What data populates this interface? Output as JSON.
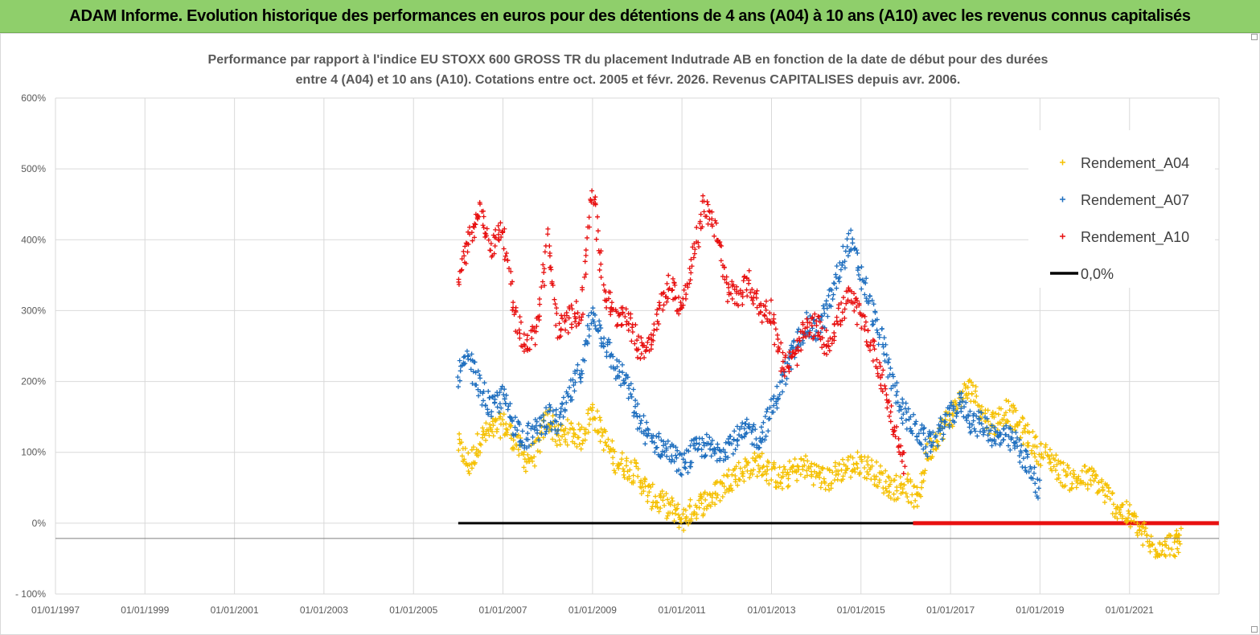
{
  "banner": {
    "title": "ADAM Informe. Evolution historique des performances en euros pour des détentions de 4 ans (A04) à 10 ans (A10) avec les revenus connus capitalisés"
  },
  "chart_data": {
    "type": "scatter",
    "title_line1": "Performance par rapport à l'indice EU STOXX 600 GROSS TR  du placement Indutrade AB en fonction de la date de début pour des durées",
    "title_line2": "entre 4 (A04) et 10 ans (A10).  Cotations entre oct. 2005 et févr. 2026. Revenus CAPITALISES depuis avr. 2006.",
    "xlabel": "",
    "ylabel": "",
    "x_tick_labels": [
      "01/01/1997",
      "01/01/1999",
      "01/01/2001",
      "01/01/2003",
      "01/01/2005",
      "01/01/2007",
      "01/01/2009",
      "01/01/2011",
      "01/01/2013",
      "01/01/2015",
      "01/01/2017",
      "01/01/2019",
      "01/01/2021"
    ],
    "y_tick_labels": [
      "600%",
      "500%",
      "400%",
      "300%",
      "200%",
      "100%",
      "0%",
      "- 100%"
    ],
    "y_ticks": [
      600,
      500,
      400,
      300,
      200,
      100,
      0,
      -100
    ],
    "xlim": [
      "1997-01-01",
      "2023-01-01"
    ],
    "ylim": [
      -100,
      600
    ],
    "grid": true,
    "legend_position": "top-right",
    "colors": {
      "A04": "#f5c000",
      "A07": "#1f6fbf",
      "A10": "#e81010",
      "zero": "#000000",
      "grid": "#d9d9d9"
    },
    "series": [
      {
        "name": "Rendement_A04",
        "color": "#f5c000",
        "points": [
          [
            "2006-01-01",
            110
          ],
          [
            "2006-04-01",
            80
          ],
          [
            "2006-07-01",
            120
          ],
          [
            "2006-10-01",
            130
          ],
          [
            "2007-01-01",
            140
          ],
          [
            "2007-04-01",
            120
          ],
          [
            "2007-07-01",
            90
          ],
          [
            "2007-10-01",
            100
          ],
          [
            "2008-01-01",
            150
          ],
          [
            "2008-04-01",
            120
          ],
          [
            "2008-07-01",
            130
          ],
          [
            "2008-10-01",
            120
          ],
          [
            "2009-01-01",
            160
          ],
          [
            "2009-04-01",
            120
          ],
          [
            "2009-07-01",
            90
          ],
          [
            "2009-10-01",
            80
          ],
          [
            "2010-01-01",
            70
          ],
          [
            "2010-04-01",
            40
          ],
          [
            "2010-07-01",
            30
          ],
          [
            "2010-10-01",
            20
          ],
          [
            "2011-01-01",
            5
          ],
          [
            "2011-04-01",
            20
          ],
          [
            "2011-07-01",
            30
          ],
          [
            "2011-10-01",
            40
          ],
          [
            "2012-01-01",
            60
          ],
          [
            "2012-04-01",
            70
          ],
          [
            "2012-07-01",
            80
          ],
          [
            "2012-10-01",
            85
          ],
          [
            "2013-01-01",
            70
          ],
          [
            "2013-04-01",
            60
          ],
          [
            "2013-07-01",
            75
          ],
          [
            "2013-10-01",
            80
          ],
          [
            "2014-01-01",
            70
          ],
          [
            "2014-04-01",
            60
          ],
          [
            "2014-07-01",
            75
          ],
          [
            "2014-10-01",
            80
          ],
          [
            "2015-01-01",
            85
          ],
          [
            "2015-04-01",
            75
          ],
          [
            "2015-07-01",
            60
          ],
          [
            "2015-10-01",
            50
          ],
          [
            "2016-01-01",
            55
          ],
          [
            "2016-04-01",
            30
          ],
          [
            "2016-07-01",
            100
          ],
          [
            "2016-10-01",
            130
          ],
          [
            "2017-01-01",
            150
          ],
          [
            "2017-04-01",
            180
          ],
          [
            "2017-07-01",
            190
          ],
          [
            "2017-10-01",
            150
          ],
          [
            "2018-01-01",
            140
          ],
          [
            "2018-04-01",
            160
          ],
          [
            "2018-07-01",
            140
          ],
          [
            "2018-10-01",
            120
          ],
          [
            "2019-01-01",
            100
          ],
          [
            "2019-04-01",
            90
          ],
          [
            "2019-07-01",
            70
          ],
          [
            "2019-10-01",
            60
          ],
          [
            "2020-01-01",
            65
          ],
          [
            "2020-04-01",
            60
          ],
          [
            "2020-07-01",
            40
          ],
          [
            "2020-10-01",
            20
          ],
          [
            "2021-01-01",
            10
          ],
          [
            "2021-04-01",
            -10
          ],
          [
            "2021-07-01",
            -35
          ],
          [
            "2021-10-01",
            -30
          ],
          [
            "2022-01-01",
            -30
          ],
          [
            "2022-03-01",
            -25
          ]
        ]
      },
      {
        "name": "Rendement_A07",
        "color": "#1f6fbf",
        "points": [
          [
            "2006-01-01",
            210
          ],
          [
            "2006-04-01",
            230
          ],
          [
            "2006-07-01",
            190
          ],
          [
            "2006-10-01",
            160
          ],
          [
            "2007-01-01",
            180
          ],
          [
            "2007-04-01",
            140
          ],
          [
            "2007-07-01",
            120
          ],
          [
            "2007-10-01",
            130
          ],
          [
            "2008-01-01",
            150
          ],
          [
            "2008-04-01",
            140
          ],
          [
            "2008-07-01",
            180
          ],
          [
            "2008-10-01",
            220
          ],
          [
            "2009-01-01",
            300
          ],
          [
            "2009-04-01",
            260
          ],
          [
            "2009-07-01",
            220
          ],
          [
            "2009-10-01",
            200
          ],
          [
            "2010-01-01",
            150
          ],
          [
            "2010-04-01",
            120
          ],
          [
            "2010-07-01",
            110
          ],
          [
            "2010-10-01",
            100
          ],
          [
            "2011-01-01",
            80
          ],
          [
            "2011-04-01",
            100
          ],
          [
            "2011-07-01",
            110
          ],
          [
            "2011-10-01",
            100
          ],
          [
            "2012-01-01",
            110
          ],
          [
            "2012-04-01",
            120
          ],
          [
            "2012-07-01",
            130
          ],
          [
            "2012-10-01",
            120
          ],
          [
            "2013-01-01",
            160
          ],
          [
            "2013-04-01",
            200
          ],
          [
            "2013-07-01",
            240
          ],
          [
            "2013-10-01",
            280
          ],
          [
            "2014-01-01",
            270
          ],
          [
            "2014-04-01",
            300
          ],
          [
            "2014-07-01",
            350
          ],
          [
            "2014-10-01",
            400
          ],
          [
            "2015-01-01",
            350
          ],
          [
            "2015-04-01",
            300
          ],
          [
            "2015-07-01",
            250
          ],
          [
            "2015-10-01",
            190
          ],
          [
            "2016-01-01",
            150
          ],
          [
            "2016-04-01",
            130
          ],
          [
            "2016-07-01",
            110
          ],
          [
            "2016-10-01",
            130
          ],
          [
            "2017-01-01",
            150
          ],
          [
            "2017-04-01",
            170
          ],
          [
            "2017-07-01",
            140
          ],
          [
            "2017-10-01",
            140
          ],
          [
            "2018-01-01",
            120
          ],
          [
            "2018-04-01",
            120
          ],
          [
            "2018-07-01",
            110
          ],
          [
            "2018-10-01",
            80
          ],
          [
            "2019-01-01",
            40
          ]
        ]
      },
      {
        "name": "Rendement_A10",
        "color": "#e81010",
        "points": [
          [
            "2006-01-01",
            350
          ],
          [
            "2006-04-01",
            400
          ],
          [
            "2006-07-01",
            440
          ],
          [
            "2006-10-01",
            390
          ],
          [
            "2007-01-01",
            420
          ],
          [
            "2007-04-01",
            300
          ],
          [
            "2007-07-01",
            250
          ],
          [
            "2007-10-01",
            270
          ],
          [
            "2008-01-01",
            400
          ],
          [
            "2008-04-01",
            270
          ],
          [
            "2008-07-01",
            290
          ],
          [
            "2008-10-01",
            300
          ],
          [
            "2009-01-01",
            480
          ],
          [
            "2009-04-01",
            330
          ],
          [
            "2009-07-01",
            290
          ],
          [
            "2009-10-01",
            300
          ],
          [
            "2010-01-01",
            250
          ],
          [
            "2010-04-01",
            250
          ],
          [
            "2010-07-01",
            300
          ],
          [
            "2010-10-01",
            340
          ],
          [
            "2011-01-01",
            300
          ],
          [
            "2011-04-01",
            370
          ],
          [
            "2011-07-01",
            450
          ],
          [
            "2011-10-01",
            420
          ],
          [
            "2012-01-01",
            330
          ],
          [
            "2012-04-01",
            320
          ],
          [
            "2012-07-01",
            340
          ],
          [
            "2012-10-01",
            300
          ],
          [
            "2013-01-01",
            300
          ],
          [
            "2013-04-01",
            220
          ],
          [
            "2013-07-01",
            230
          ],
          [
            "2013-10-01",
            270
          ],
          [
            "2014-01-01",
            280
          ],
          [
            "2014-04-01",
            250
          ],
          [
            "2014-07-01",
            290
          ],
          [
            "2014-10-01",
            320
          ],
          [
            "2015-01-01",
            290
          ],
          [
            "2015-04-01",
            250
          ],
          [
            "2015-07-01",
            200
          ],
          [
            "2015-10-01",
            130
          ],
          [
            "2016-01-01",
            80
          ]
        ]
      },
      {
        "name": "0,0%",
        "color": "#000000",
        "points": [
          [
            "2006-01-01",
            0
          ],
          [
            "2022-12-31",
            0
          ]
        ]
      }
    ],
    "zero_line_after_a10": {
      "from": "2016-03-01",
      "to": "2022-12-31",
      "value": 0,
      "color": "#e81010"
    }
  }
}
